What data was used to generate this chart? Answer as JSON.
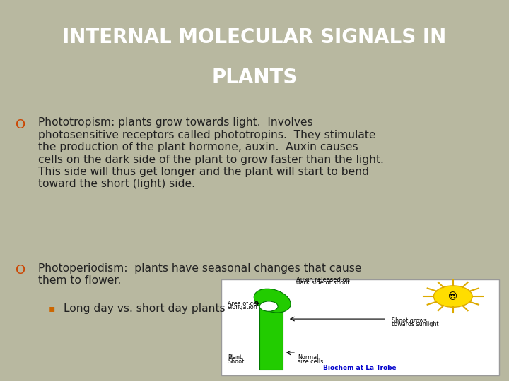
{
  "title_line1": "INTERNAL MOLECULAR SIGNALS IN",
  "title_line2": "PLANTS",
  "title_bg_color": "#5a4f4b",
  "title_text_color": "#ffffff",
  "body_bg_color": "#b8b8a0",
  "bullet_color": "#cc4400",
  "sub_bullet_color": "#cc6600",
  "text_color": "#222222",
  "bullet1_head": "Phototropism:",
  "bullet1_body": " plants grow towards light.  Involves\nphotosensitive receptors called phototropins.  They stimulate\nthe production of the plant hormone, auxin.  Auxin causes\ncells on the dark side of the plant to grow faster than the light.\nThis side will thus get longer and the plant will start to bend\ntoward the short (light) side.",
  "bullet2_head": "Photoperiodism:",
  "bullet2_body": "  plants have seasonal changes that cause\nthem to flower.",
  "sub_bullet1": "Long day vs. short day plants",
  "figsize": [
    7.2,
    5.4
  ],
  "dpi": 100
}
